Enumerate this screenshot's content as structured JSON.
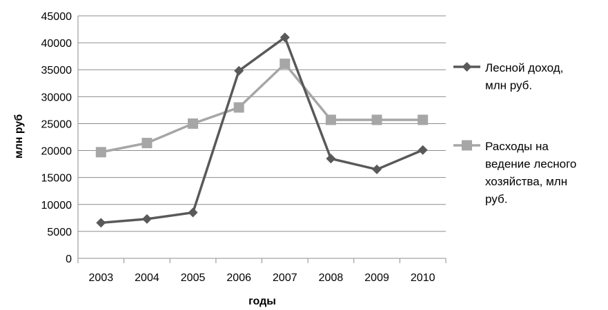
{
  "chart_data": {
    "type": "line",
    "categories": [
      "2003",
      "2004",
      "2005",
      "2006",
      "2007",
      "2008",
      "2009",
      "2010"
    ],
    "series": [
      {
        "name": "Лесной доход, млн руб.",
        "name_lines": [
          "Лесной доход,",
          "млн руб."
        ],
        "values": [
          6600,
          7300,
          8500,
          34800,
          41000,
          18500,
          16500,
          20100
        ],
        "color": "#595959",
        "marker": "diamond"
      },
      {
        "name": "Расходы на ведение лесного хозяйства, млн руб.",
        "name_lines": [
          "Расходы на",
          "ведение лесного",
          "хозяйства, млн",
          "руб."
        ],
        "values": [
          19700,
          21400,
          25000,
          28000,
          36100,
          25700,
          25700,
          25700
        ],
        "color": "#a6a6a6",
        "marker": "square"
      }
    ],
    "xlabel": "годы",
    "ylabel": "млн руб",
    "ylim": [
      0,
      45000
    ],
    "yticks": [
      "0",
      "5000",
      "10000",
      "15000",
      "20000",
      "25000",
      "30000",
      "35000",
      "40000",
      "45000"
    ],
    "grid": true,
    "legend": "right"
  }
}
